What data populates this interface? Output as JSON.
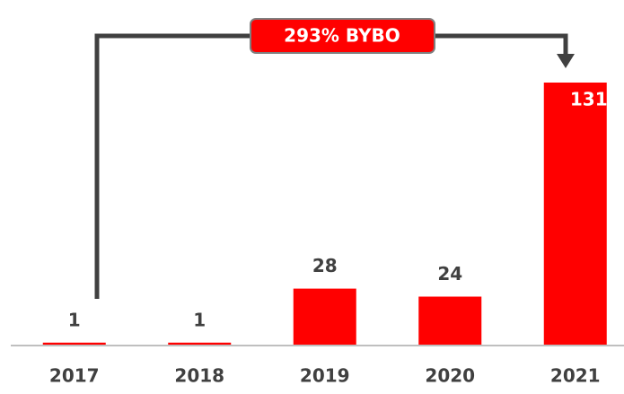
{
  "chart_data": {
    "type": "bar",
    "annotation": "293% BYBO",
    "categories": [
      "2017",
      "2018",
      "2019",
      "2020",
      "2021"
    ],
    "values": [
      1,
      1,
      28,
      24,
      131
    ],
    "color": "#ff0000"
  }
}
